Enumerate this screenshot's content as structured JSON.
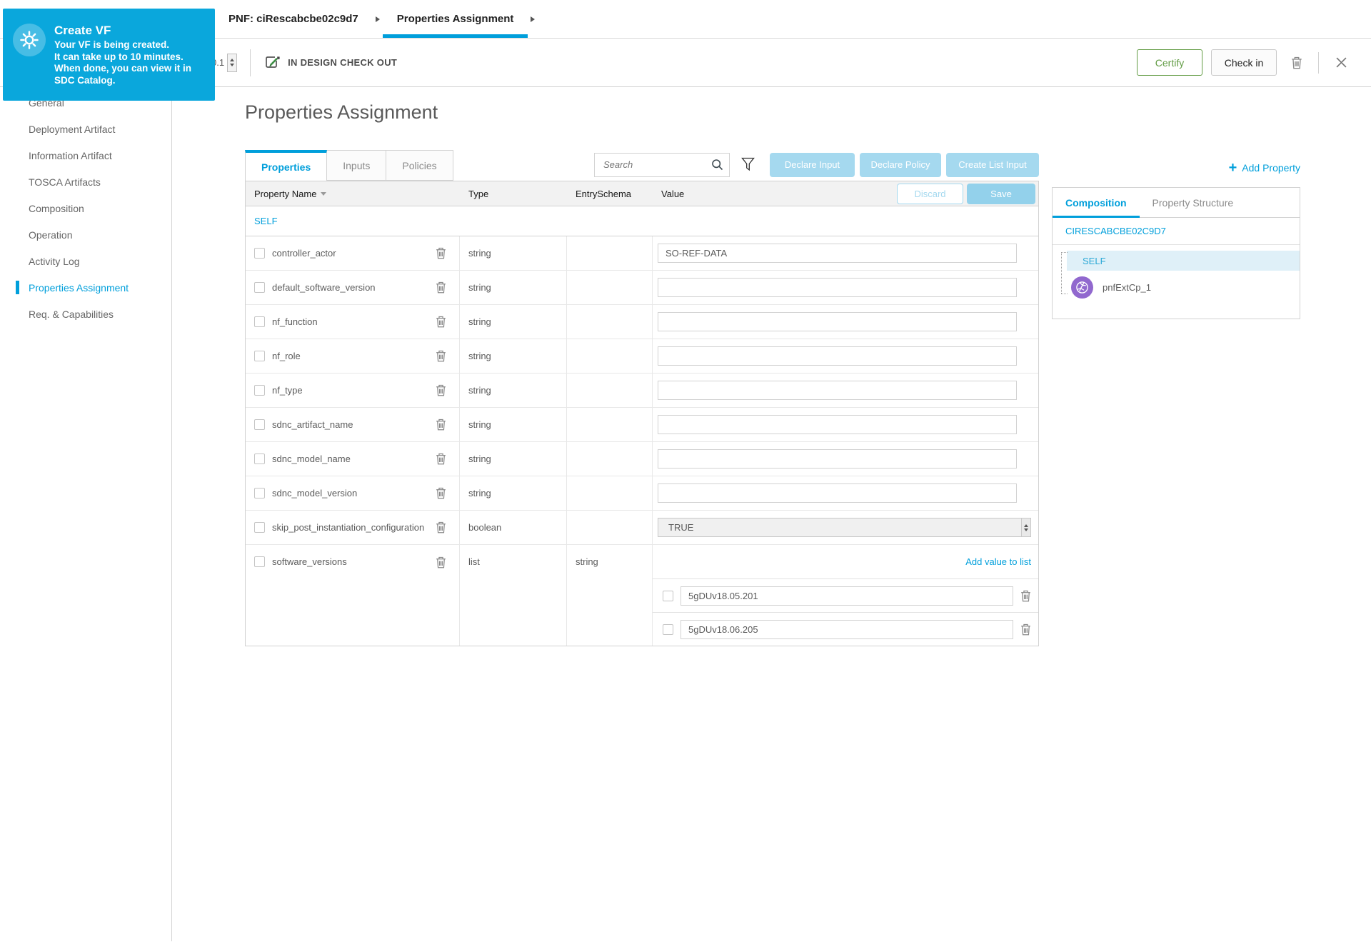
{
  "colors": {
    "accent": "#009fdb",
    "toast_blue": "#0aa7dc",
    "certify_green": "#629c44",
    "disabled_blue": "#a5d9ef",
    "cp_purple": "#9168ce"
  },
  "toast": {
    "icon": "gear-icon",
    "title": "Create VF",
    "body": [
      "Your VF is being created.",
      "It can take up to 10 minutes.",
      "When done, you can view it in SDC Catalog."
    ]
  },
  "breadcrumb": {
    "tabs": [
      {
        "label": "PNF: ciRescabcbe02c9d7",
        "active": false
      },
      {
        "label": "Properties Assignment",
        "active": true
      }
    ]
  },
  "toolbar": {
    "version": "0.1",
    "status": "IN DESIGN CHECK OUT",
    "certify_label": "Certify",
    "checkin_label": "Check in"
  },
  "sidebar": {
    "items": [
      {
        "label": "General",
        "active": false
      },
      {
        "label": "Deployment Artifact",
        "active": false
      },
      {
        "label": "Information Artifact",
        "active": false
      },
      {
        "label": "TOSCA Artifacts",
        "active": false
      },
      {
        "label": "Composition",
        "active": false
      },
      {
        "label": "Operation",
        "active": false
      },
      {
        "label": "Activity Log",
        "active": false
      },
      {
        "label": "Properties Assignment",
        "active": true
      },
      {
        "label": "Req. & Capabilities",
        "active": false
      }
    ]
  },
  "main": {
    "title": "Properties Assignment",
    "tabs": [
      {
        "label": "Properties",
        "active": true
      },
      {
        "label": "Inputs",
        "active": false
      },
      {
        "label": "Policies",
        "active": false
      }
    ],
    "search": {
      "placeholder": "Search",
      "value": ""
    },
    "actions": {
      "declare_input": "Declare Input",
      "declare_policy": "Declare Policy",
      "create_list_input": "Create List Input",
      "add_property": "Add Property"
    },
    "table": {
      "headers": {
        "name": "Property Name",
        "type": "Type",
        "entry_schema": "EntrySchema",
        "value": "Value"
      },
      "discard_label": "Discard",
      "save_label": "Save",
      "scope_label": "SELF",
      "rows": [
        {
          "name": "controller_actor",
          "type": "string",
          "entry_schema": "",
          "value": {
            "kind": "input",
            "text": "SO-REF-DATA"
          }
        },
        {
          "name": "default_software_version",
          "type": "string",
          "entry_schema": "",
          "value": {
            "kind": "input",
            "text": ""
          }
        },
        {
          "name": "nf_function",
          "type": "string",
          "entry_schema": "",
          "value": {
            "kind": "input",
            "text": ""
          }
        },
        {
          "name": "nf_role",
          "type": "string",
          "entry_schema": "",
          "value": {
            "kind": "input",
            "text": ""
          }
        },
        {
          "name": "nf_type",
          "type": "string",
          "entry_schema": "",
          "value": {
            "kind": "input",
            "text": ""
          }
        },
        {
          "name": "sdnc_artifact_name",
          "type": "string",
          "entry_schema": "",
          "value": {
            "kind": "input",
            "text": ""
          }
        },
        {
          "name": "sdnc_model_name",
          "type": "string",
          "entry_schema": "",
          "value": {
            "kind": "input",
            "text": ""
          }
        },
        {
          "name": "sdnc_model_version",
          "type": "string",
          "entry_schema": "",
          "value": {
            "kind": "input",
            "text": ""
          }
        },
        {
          "name": "skip_post_instantiation_configuration",
          "type": "boolean",
          "entry_schema": "",
          "value": {
            "kind": "select",
            "selected": "TRUE"
          }
        },
        {
          "name": "software_versions",
          "type": "list",
          "entry_schema": "string",
          "value": {
            "kind": "list",
            "add_label": "Add value to list",
            "items": [
              "5gDUv18.05.201",
              "5gDUv18.06.205"
            ]
          }
        }
      ]
    }
  },
  "composition_panel": {
    "tabs": [
      {
        "label": "Composition",
        "active": true
      },
      {
        "label": "Property Structure",
        "active": false
      }
    ],
    "component_id": "CIRESCABCBE02C9D7",
    "tree": {
      "root": "SELF",
      "children": [
        {
          "label": "pnfExtCp_1",
          "icon": "connection-point-icon"
        }
      ]
    }
  }
}
